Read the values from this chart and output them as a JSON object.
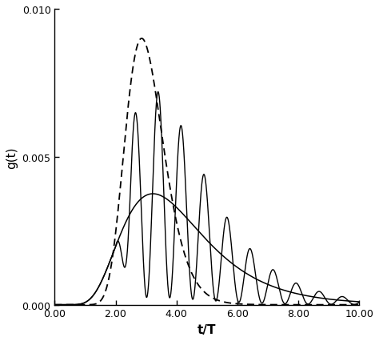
{
  "xlabel": "t/T",
  "ylabel": "g(t)",
  "xlim": [
    0.0,
    10.0
  ],
  "ylim": [
    0.0,
    0.01
  ],
  "xticks": [
    0.0,
    2.0,
    4.0,
    6.0,
    8.0,
    10.0
  ],
  "yticks": [
    0.0,
    0.005,
    0.01
  ],
  "xtick_labels": [
    "0.00",
    "2.00",
    "4.00",
    "6.00",
    "8.00",
    "10.00"
  ],
  "ytick_labels": [
    "0.000",
    "0.005",
    "0.010"
  ],
  "line_color": "#000000",
  "background_color": "#ffffff",
  "figsize": [
    4.74,
    4.27
  ],
  "dpi": 100,
  "dashed_peak_t": 3.0,
  "dashed_sigma": 0.22,
  "dashed_amp": 0.009,
  "smooth_peak_t": 3.85,
  "smooth_sigma": 0.42,
  "smooth_amp": 0.00375,
  "osc_freq": 1.32,
  "osc_phase": 3.4,
  "osc_decay": 0.38,
  "osc_amp_scale": 0.0035,
  "osc_onset": 2.0
}
